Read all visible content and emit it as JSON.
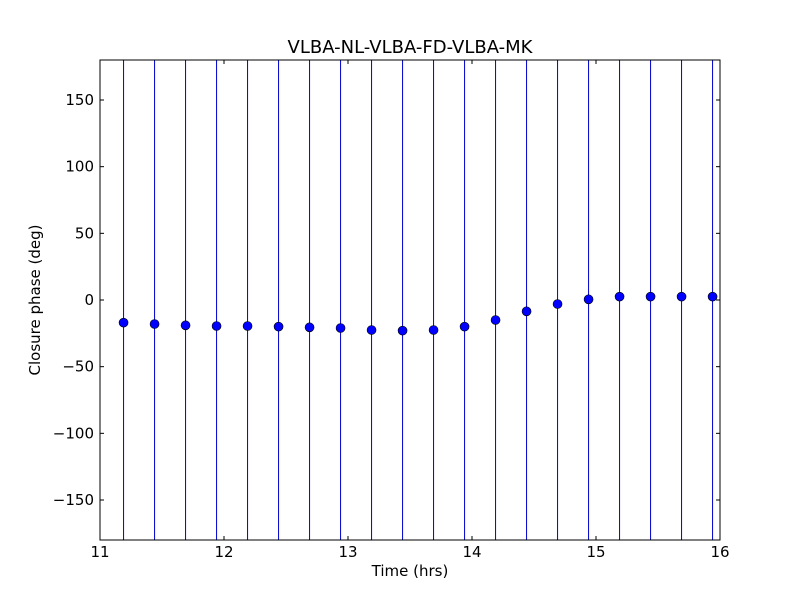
{
  "chart_data": {
    "type": "scatter",
    "title": "VLBA-NL-VLBA-FD-VLBA-MK",
    "xlabel": "Time (hrs)",
    "ylabel": "Closure phase (deg)",
    "xlim": [
      11,
      16
    ],
    "ylim": [
      -180,
      180
    ],
    "xticks": [
      11,
      12,
      13,
      14,
      15,
      16
    ],
    "xtick_labels": [
      "11",
      "12",
      "13",
      "14",
      "15",
      "16"
    ],
    "yticks": [
      -150,
      -100,
      -50,
      0,
      50,
      100,
      150
    ],
    "ytick_labels": [
      "−150",
      "−100",
      "−50",
      "0",
      "50",
      "100",
      "150"
    ],
    "grid": false,
    "legend": "none",
    "marker_color": "#0000ff",
    "errorbar_color": "#0000cc",
    "series": [
      {
        "x": [
          11.19,
          11.44,
          11.69,
          11.94,
          12.19,
          12.44,
          12.69,
          12.94,
          13.19,
          13.44,
          13.69,
          13.94,
          14.19,
          14.44,
          14.69,
          14.94,
          15.19,
          15.44,
          15.69,
          15.94
        ],
        "y": [
          -17,
          -18,
          -19,
          -19.5,
          -19.5,
          -20,
          -20.5,
          -21,
          -22.5,
          -23,
          -22.5,
          -20,
          -15,
          -8.5,
          -3,
          0.5,
          2.5,
          2.5,
          2.5,
          2.5
        ],
        "yerr_low": [
          -180,
          -180,
          -180,
          -180,
          -180,
          -180,
          -180,
          -180,
          -180,
          -180,
          -180,
          -180,
          -180,
          -180,
          -180,
          -180,
          -180,
          -180,
          -180,
          -180
        ],
        "yerr_high": [
          180,
          180,
          180,
          180,
          180,
          180,
          180,
          180,
          180,
          180,
          180,
          180,
          180,
          180,
          180,
          180,
          180,
          180,
          180,
          180
        ]
      }
    ]
  }
}
